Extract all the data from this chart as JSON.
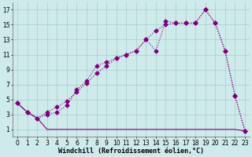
{
  "background_color": "#ceeaea",
  "grid_color": "#aacccc",
  "line_color": "#800080",
  "markersize": 2.5,
  "linewidth": 0.8,
  "xlabel": "Windchill (Refroidissement éolien,°C)",
  "xlabel_fontsize": 6,
  "tick_fontsize": 5.5,
  "xlim": [
    -0.5,
    23.5
  ],
  "ylim": [
    0,
    18
  ],
  "xticks": [
    0,
    1,
    2,
    3,
    4,
    5,
    6,
    7,
    8,
    9,
    10,
    11,
    12,
    13,
    14,
    15,
    16,
    17,
    18,
    19,
    20,
    21,
    22,
    23
  ],
  "yticks": [
    1,
    3,
    5,
    7,
    9,
    11,
    13,
    15,
    17
  ],
  "series1_x": [
    0,
    1,
    2,
    3,
    4,
    5,
    6,
    7,
    8,
    9,
    10,
    11,
    12,
    13,
    14,
    15,
    16,
    17,
    18,
    19,
    20,
    21,
    22,
    23
  ],
  "series1_y": [
    4.5,
    3.3,
    2.5,
    3.0,
    3.3,
    4.2,
    6.3,
    7.5,
    9.5,
    10.0,
    10.5,
    11.0,
    11.5,
    13.0,
    11.5,
    15.5,
    15.2,
    15.2,
    15.2,
    17.0,
    15.2,
    11.5,
    5.5,
    0.8
  ],
  "series2_x": [
    0,
    1,
    2,
    3,
    4,
    5,
    6,
    7,
    8,
    9,
    10,
    11,
    12,
    13,
    14,
    15,
    16,
    17,
    18,
    19,
    20,
    21,
    22,
    23
  ],
  "series2_y": [
    4.5,
    3.3,
    2.5,
    1.0,
    1.0,
    1.0,
    1.0,
    1.0,
    1.0,
    1.0,
    1.0,
    1.0,
    1.0,
    1.0,
    1.0,
    1.0,
    1.0,
    1.0,
    1.0,
    1.0,
    1.0,
    1.0,
    1.0,
    0.8
  ],
  "series3_x": [
    0,
    1,
    2,
    3,
    4,
    5,
    6,
    7,
    8,
    9,
    10,
    11,
    12,
    13,
    14,
    15,
    16,
    17,
    18,
    19,
    20,
    21,
    22,
    23
  ],
  "series3_y": [
    4.5,
    3.3,
    2.5,
    3.3,
    4.0,
    4.8,
    6.0,
    7.2,
    8.5,
    9.5,
    10.5,
    11.0,
    11.5,
    13.0,
    14.2,
    15.0,
    15.2,
    15.2,
    15.2,
    17.0,
    15.2,
    11.5,
    5.5,
    0.8
  ]
}
